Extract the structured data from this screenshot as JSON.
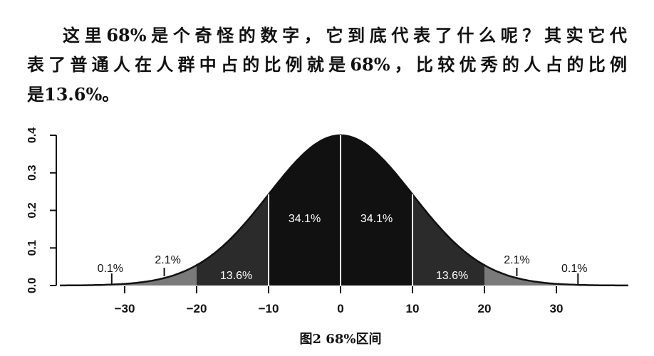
{
  "paragraph": {
    "lines": [
      "这里68%是个奇怪的数字，它到底代表了什么呢？其实它代",
      "表了普通人在人群中占的比例就是68%，比较优秀的人占的比例",
      "是13.6%。"
    ]
  },
  "caption": "图2 68%区间",
  "chart_data": {
    "type": "area",
    "title": "",
    "xlabel": "",
    "ylabel": "",
    "curve": "normal distribution density, mean 0, sd 10 (peak 0.4)",
    "xlim": [
      -39,
      40
    ],
    "ylim": [
      0,
      0.4
    ],
    "x_ticks": [
      -30,
      -20,
      -10,
      0,
      10,
      20,
      30
    ],
    "x_tick_labels": [
      "−30",
      "−20",
      "−10",
      "0",
      "10",
      "20",
      "30"
    ],
    "y_ticks": [
      0.0,
      0.1,
      0.2,
      0.3,
      0.4
    ],
    "y_tick_labels": [
      "0.0",
      "0.1",
      "0.2",
      "0.3",
      "0.4"
    ],
    "regions": [
      {
        "from": -10,
        "to": 0,
        "label": "34.1%",
        "color": "#111111"
      },
      {
        "from": 0,
        "to": 10,
        "label": "34.1%",
        "color": "#111111"
      },
      {
        "from": -20,
        "to": -10,
        "label": "13.6%",
        "color": "#2b2b2b"
      },
      {
        "from": 10,
        "to": 20,
        "label": "13.6%",
        "color": "#2b2b2b"
      },
      {
        "from": -30,
        "to": -20,
        "label": "2.1%",
        "color": "#7a7a7a"
      },
      {
        "from": 20,
        "to": 30,
        "label": "2.1%",
        "color": "#7a7a7a"
      },
      {
        "from": -40,
        "to": -30,
        "label": "0.1%",
        "color": "#9a9a9a"
      },
      {
        "from": 30,
        "to": 40,
        "label": "0.1%",
        "color": "#9a9a9a"
      }
    ],
    "grid": false
  }
}
